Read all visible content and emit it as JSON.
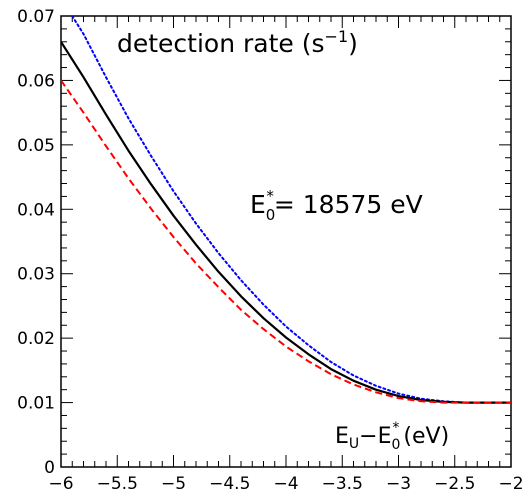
{
  "chart_data": {
    "type": "line",
    "title": "",
    "xlabel": "",
    "ylabel": "",
    "xlim": [
      -6,
      -2
    ],
    "ylim": [
      0,
      0.07
    ],
    "x_ticks": [
      -6,
      -5.5,
      -5,
      -4.5,
      -4,
      -3.5,
      -3,
      -2.5,
      -2
    ],
    "x_tick_labels": [
      "−6",
      "−5.5",
      "−5",
      "−4.5",
      "−4",
      "−3.5",
      "−3",
      "−2.5",
      "−2"
    ],
    "y_ticks": [
      0,
      0.01,
      0.02,
      0.03,
      0.04,
      0.05,
      0.06,
      0.07
    ],
    "y_tick_labels": [
      "0",
      "0.01",
      "0.02",
      "0.03",
      "0.04",
      "0.05",
      "0.06",
      "0.07"
    ],
    "grid": false,
    "annotations": {
      "rate_main": "detection rate (s",
      "rate_exp": "−1",
      "rate_close": ")",
      "e0_main": "E",
      "e0_sub": "0",
      "e0_sup": "*",
      "e0_value": "= 18575 eV",
      "xunit_E": "E",
      "xunit_U": "U",
      "xunit_minus": "−E",
      "xunit_sub": "0",
      "xunit_sup": "*",
      "xunit_ev": "(eV)"
    },
    "series": [
      {
        "style": "dotted",
        "color": "#0000ff",
        "x": [
          -5.9,
          -5.8,
          -5.6,
          -5.4,
          -5.2,
          -5.0,
          -4.8,
          -4.6,
          -4.4,
          -4.2,
          -4.0,
          -3.8,
          -3.6,
          -3.4,
          -3.2,
          -3.0,
          -2.8,
          -2.6,
          -2.4,
          -2.2,
          -2.0
        ],
        "y": [
          0.07,
          0.0672,
          0.0605,
          0.0541,
          0.0483,
          0.0428,
          0.0378,
          0.0332,
          0.029,
          0.0252,
          0.0218,
          0.0189,
          0.0163,
          0.0142,
          0.0126,
          0.0114,
          0.0106,
          0.0102,
          0.01,
          0.01,
          0.01
        ]
      },
      {
        "style": "solid",
        "color": "#000000",
        "x": [
          -6.0,
          -5.8,
          -5.6,
          -5.4,
          -5.2,
          -5.0,
          -4.8,
          -4.6,
          -4.4,
          -4.2,
          -4.0,
          -3.8,
          -3.6,
          -3.4,
          -3.2,
          -3.0,
          -2.8,
          -2.6,
          -2.4,
          -2.2,
          -2.0
        ],
        "y": [
          0.066,
          0.0605,
          0.0547,
          0.0491,
          0.0439,
          0.039,
          0.0345,
          0.0303,
          0.0265,
          0.0231,
          0.0201,
          0.0175,
          0.0152,
          0.0134,
          0.012,
          0.011,
          0.0104,
          0.0101,
          0.01,
          0.01,
          0.01
        ]
      },
      {
        "style": "dashed",
        "color": "#ff0000",
        "x": [
          -6.0,
          -5.8,
          -5.6,
          -5.4,
          -5.2,
          -5.0,
          -4.8,
          -4.6,
          -4.4,
          -4.2,
          -4.0,
          -3.8,
          -3.6,
          -3.4,
          -3.2,
          -3.0,
          -2.8,
          -2.6,
          -2.4,
          -2.2,
          -2.0
        ],
        "y": [
          0.06,
          0.055,
          0.0498,
          0.0448,
          0.0401,
          0.0357,
          0.0316,
          0.0279,
          0.0244,
          0.0214,
          0.0187,
          0.0164,
          0.0144,
          0.0128,
          0.0116,
          0.0107,
          0.0102,
          0.01,
          0.01,
          0.01,
          0.01
        ]
      }
    ]
  }
}
